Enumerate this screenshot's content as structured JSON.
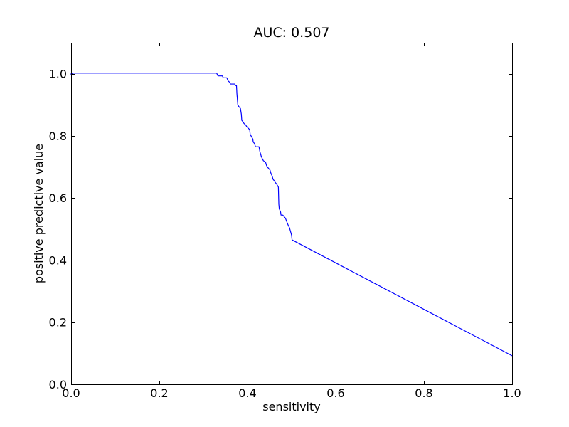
{
  "chart_data": {
    "type": "line",
    "title": "AUC: 0.507",
    "xlabel": "sensitivity",
    "ylabel": "positive predictive value",
    "xlim": [
      0.0,
      1.0
    ],
    "ylim": [
      0.0,
      1.1
    ],
    "xticks": [
      0.0,
      0.2,
      0.4,
      0.6,
      0.8,
      1.0
    ],
    "xtick_labels": [
      "0.0",
      "0.2",
      "0.4",
      "0.6",
      "0.8",
      "1.0"
    ],
    "yticks": [
      0.0,
      0.2,
      0.4,
      0.6,
      0.8,
      1.0
    ],
    "ytick_labels": [
      "0.0",
      "0.2",
      "0.4",
      "0.6",
      "0.8",
      "1.0"
    ],
    "grid": false,
    "legend": false,
    "series": [
      {
        "color": "#0000ff",
        "x": [
          0.0,
          0.0,
          0.005,
          0.33,
          0.333,
          0.343,
          0.345,
          0.353,
          0.356,
          0.36,
          0.361,
          0.371,
          0.373,
          0.375,
          0.376,
          0.378,
          0.38,
          0.383,
          0.384,
          0.386,
          0.387,
          0.39,
          0.392,
          0.396,
          0.398,
          0.405,
          0.406,
          0.41,
          0.412,
          0.413,
          0.416,
          0.418,
          0.42,
          0.426,
          0.428,
          0.429,
          0.431,
          0.433,
          0.436,
          0.441,
          0.443,
          0.445,
          0.451,
          0.453,
          0.456,
          0.458,
          0.461,
          0.463,
          0.466,
          0.468,
          0.47,
          0.471,
          0.472,
          0.475,
          0.476,
          0.48,
          0.483,
          0.486,
          0.49,
          0.493,
          0.495,
          0.498,
          0.5,
          0.501,
          1.0
        ],
        "y": [
          0.995,
          1.0,
          1.002,
          1.002,
          0.993,
          0.993,
          0.987,
          0.987,
          0.977,
          0.972,
          0.967,
          0.967,
          0.962,
          0.962,
          0.935,
          0.9,
          0.895,
          0.89,
          0.888,
          0.87,
          0.85,
          0.845,
          0.84,
          0.835,
          0.83,
          0.82,
          0.805,
          0.795,
          0.79,
          0.78,
          0.775,
          0.765,
          0.765,
          0.765,
          0.75,
          0.745,
          0.735,
          0.728,
          0.72,
          0.715,
          0.705,
          0.7,
          0.69,
          0.68,
          0.67,
          0.66,
          0.655,
          0.65,
          0.645,
          0.64,
          0.635,
          0.58,
          0.565,
          0.555,
          0.545,
          0.545,
          0.54,
          0.535,
          0.52,
          0.51,
          0.505,
          0.49,
          0.48,
          0.465,
          0.092
        ]
      }
    ]
  }
}
